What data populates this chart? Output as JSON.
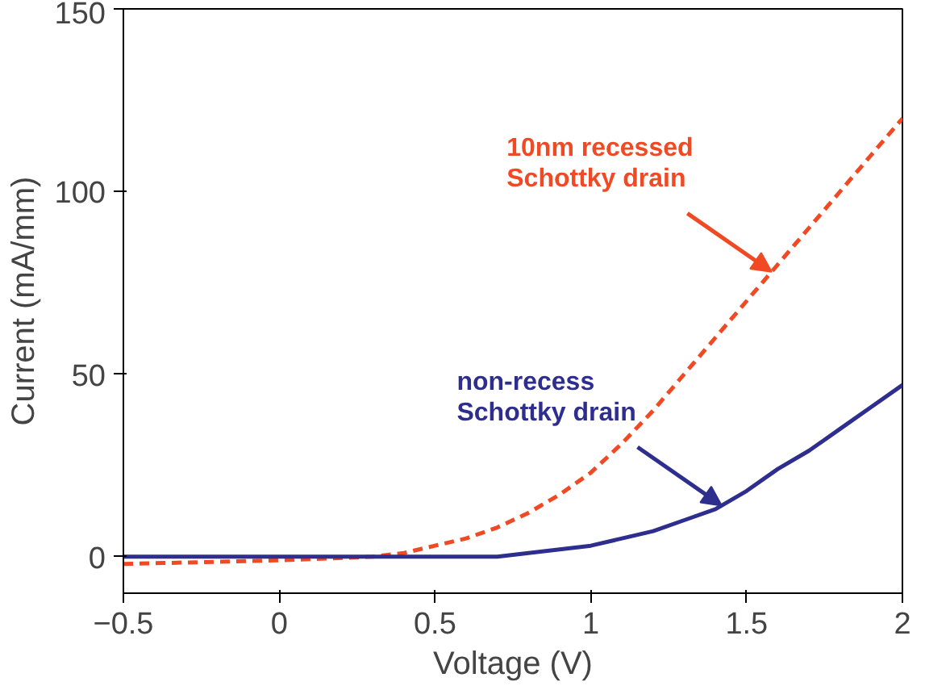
{
  "chart_data": {
    "type": "line",
    "xlabel": "Voltage (V)",
    "ylabel": "Current (mA/mm)",
    "xlim": [
      -0.5,
      2
    ],
    "ylim": [
      -10,
      150
    ],
    "xticks": [
      -0.5,
      0,
      0.5,
      1,
      1.5,
      2
    ],
    "yticks": [
      0,
      50,
      100,
      150
    ],
    "grid": false,
    "series": [
      {
        "color": "#f04a24",
        "line_style": "dashed",
        "x": [
          -0.5,
          -0.25,
          0,
          0.3,
          0.4,
          0.5,
          0.6,
          0.7,
          0.8,
          0.9,
          1.0,
          1.1,
          1.2,
          1.3,
          1.4,
          1.5,
          1.6,
          1.7,
          1.8,
          1.9,
          2.0
        ],
        "values": [
          -2,
          -1.5,
          -1,
          0,
          1,
          3,
          5,
          8,
          12,
          17,
          23,
          31,
          40,
          50,
          60,
          70,
          80,
          90,
          100,
          110,
          120
        ]
      },
      {
        "color": "#2e2e8f",
        "line_style": "solid",
        "x": [
          -0.5,
          0,
          0.5,
          0.7,
          0.8,
          0.9,
          1.0,
          1.1,
          1.2,
          1.3,
          1.4,
          1.5,
          1.6,
          1.7,
          1.8,
          1.9,
          2.0
        ],
        "values": [
          0,
          0,
          0,
          0,
          1,
          2,
          3,
          5,
          7,
          10,
          13,
          18,
          24,
          29,
          35,
          41,
          47
        ]
      }
    ],
    "annotations": [
      {
        "text": "10nm recessed\nSchottky drain",
        "x": 1.58,
        "y": 78
      },
      {
        "text": "non-recess\nSchottky drain",
        "x": 1.42,
        "y": 14
      }
    ]
  }
}
